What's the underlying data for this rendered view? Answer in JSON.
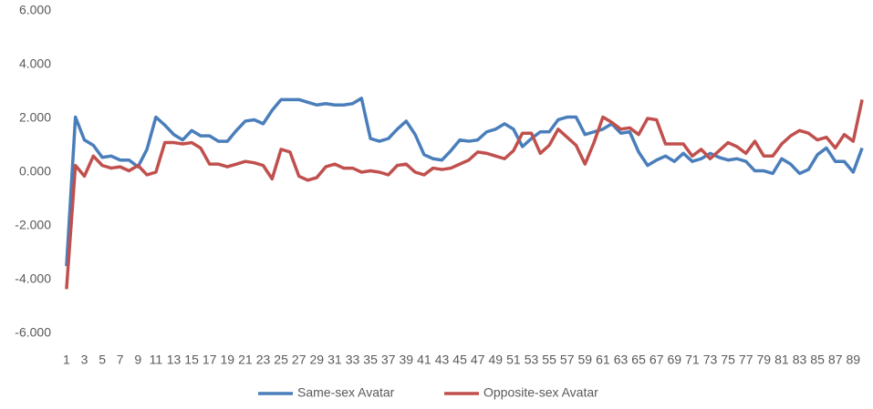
{
  "chart_data": {
    "type": "line",
    "categories": [
      1,
      null,
      3,
      null,
      5,
      null,
      7,
      null,
      9,
      null,
      11,
      null,
      13,
      null,
      15,
      null,
      17,
      null,
      19,
      null,
      21,
      null,
      23,
      null,
      25,
      null,
      27,
      null,
      29,
      null,
      31,
      null,
      33,
      null,
      35,
      null,
      37,
      null,
      39,
      null,
      41,
      null,
      43,
      null,
      45,
      null,
      47,
      null,
      49,
      null,
      51,
      null,
      53,
      null,
      55,
      null,
      57,
      null,
      59,
      null,
      61,
      null,
      63,
      null,
      65,
      null,
      67,
      null,
      69,
      null,
      71,
      null,
      73,
      null,
      75,
      null,
      77,
      null,
      79,
      null,
      81,
      null,
      83,
      null,
      85,
      null,
      87,
      null,
      89,
      null
    ],
    "series": [
      {
        "name": "Same-sex Avatar",
        "color": "#4a7ebb",
        "values": [
          -3.5,
          2.05,
          1.2,
          1.0,
          0.55,
          0.6,
          0.45,
          0.45,
          0.2,
          0.85,
          2.05,
          1.75,
          1.4,
          1.2,
          1.55,
          1.35,
          1.35,
          1.15,
          1.15,
          1.55,
          1.9,
          1.95,
          1.8,
          2.3,
          2.7,
          2.7,
          2.7,
          2.6,
          2.5,
          2.55,
          2.5,
          2.5,
          2.55,
          2.75,
          1.25,
          1.15,
          1.25,
          1.6,
          1.9,
          1.4,
          0.65,
          0.5,
          0.45,
          0.8,
          1.2,
          1.15,
          1.2,
          1.5,
          1.6,
          1.8,
          1.6,
          0.95,
          1.25,
          1.5,
          1.5,
          1.95,
          2.05,
          2.05,
          1.4,
          1.5,
          1.6,
          1.8,
          1.45,
          1.5,
          0.75,
          0.25,
          0.45,
          0.6,
          0.4,
          0.7,
          0.4,
          0.5,
          0.7,
          0.55,
          0.45,
          0.5,
          0.4,
          0.05,
          0.05,
          -0.05,
          0.5,
          0.3,
          -0.05,
          0.1,
          0.65,
          0.9,
          0.4,
          0.4,
          0.0,
          0.9
        ]
      },
      {
        "name": "Opposite-sex Avatar",
        "color": "#c0504d",
        "values": [
          -4.35,
          0.25,
          -0.15,
          0.6,
          0.25,
          0.15,
          0.2,
          0.05,
          0.25,
          -0.1,
          0.0,
          1.1,
          1.1,
          1.05,
          1.1,
          0.9,
          0.3,
          0.3,
          0.2,
          0.3,
          0.4,
          0.35,
          0.25,
          -0.25,
          0.85,
          0.75,
          -0.15,
          -0.3,
          -0.2,
          0.2,
          0.3,
          0.15,
          0.15,
          0.0,
          0.05,
          0.0,
          -0.1,
          0.25,
          0.3,
          0.0,
          -0.1,
          0.15,
          0.1,
          0.15,
          0.3,
          0.45,
          0.75,
          0.7,
          0.6,
          0.5,
          0.8,
          1.45,
          1.45,
          0.7,
          1.0,
          1.6,
          1.3,
          1.0,
          0.3,
          1.1,
          2.05,
          1.85,
          1.6,
          1.65,
          1.4,
          2.0,
          1.95,
          1.05,
          1.05,
          1.05,
          0.6,
          0.85,
          0.5,
          0.8,
          1.1,
          0.95,
          0.7,
          1.15,
          0.6,
          0.6,
          1.05,
          1.35,
          1.55,
          1.45,
          1.2,
          1.3,
          0.9,
          1.4,
          1.15,
          2.7
        ]
      }
    ],
    "ylim": [
      -6,
      6
    ],
    "yticks": [
      {
        "value": -6,
        "label": "-6.000"
      },
      {
        "value": -4,
        "label": "-4.000"
      },
      {
        "value": -2,
        "label": "-2.000"
      },
      {
        "value": 0,
        "label": "0.000"
      },
      {
        "value": 2,
        "label": "2.000"
      },
      {
        "value": 4,
        "label": "4.000"
      },
      {
        "value": 6,
        "label": "6.000"
      }
    ],
    "grid": false
  }
}
